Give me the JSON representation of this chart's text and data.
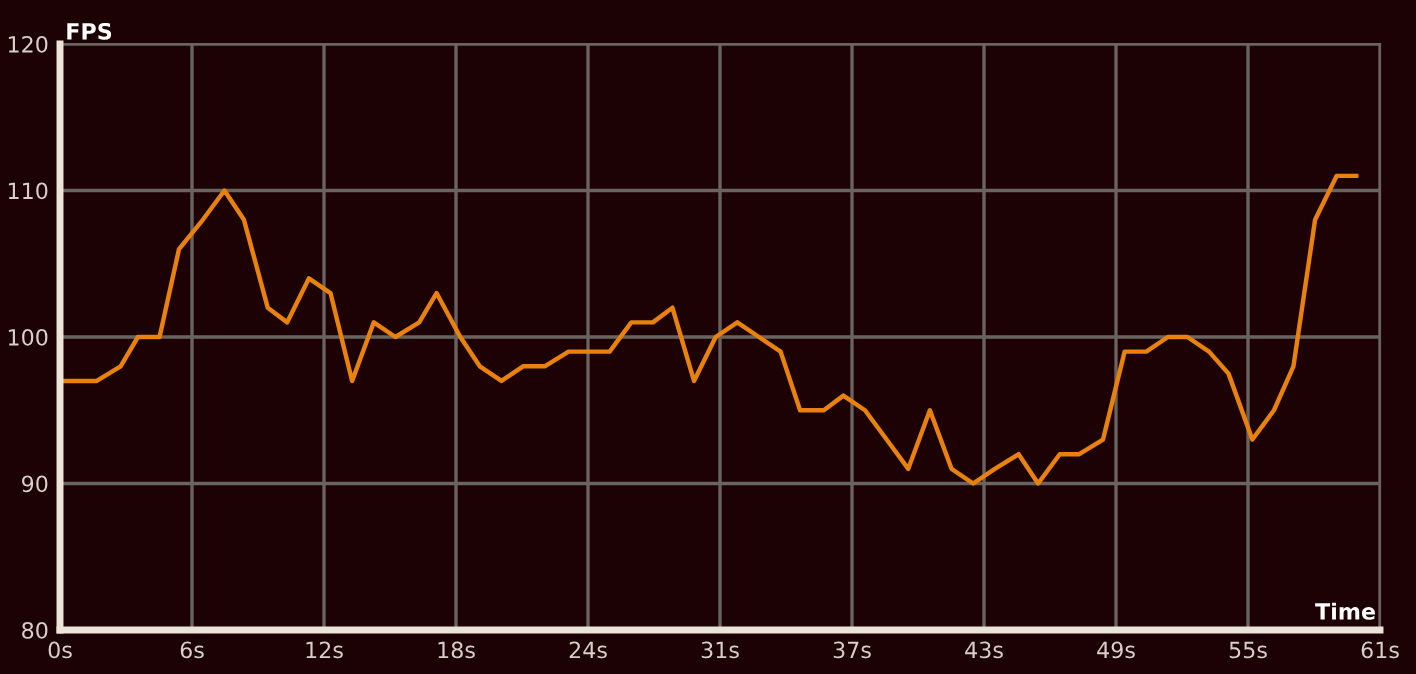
{
  "chart_data": {
    "type": "line",
    "xlabel": "Time",
    "ylabel": "FPS",
    "x": [
      0,
      1.7,
      2.8,
      3.6,
      4.6,
      5.5,
      6.6,
      7.6,
      8.5,
      9.6,
      10.5,
      11.5,
      12.5,
      13.5,
      14.5,
      15.5,
      16.6,
      17.4,
      18.5,
      19.4,
      20.4,
      21.4,
      22.4,
      23.5,
      25.4,
      26.4,
      27.4,
      28.3,
      29.3,
      30.3,
      31.3,
      32.3,
      33.3,
      34.2,
      35.3,
      36.2,
      37.2,
      38.2,
      39.2,
      40.2,
      41.2,
      42.2,
      43.2,
      44.3,
      45.2,
      46.2,
      47.1,
      48.2,
      49.2,
      50.2,
      51.2,
      52.1,
      53.1,
      54,
      55.1,
      56.1,
      57,
      58,
      59,
      59.9
    ],
    "series": [
      {
        "color": "#e8820c",
        "values": [
          97,
          97,
          98,
          100,
          100,
          106,
          108,
          110,
          108,
          102,
          101,
          104,
          103,
          97,
          101,
          100,
          101,
          103,
          100,
          98,
          97,
          98,
          98,
          99,
          99,
          101,
          101,
          102,
          97,
          100,
          101,
          100,
          99,
          95,
          95,
          96,
          95,
          93,
          91,
          95,
          91,
          90,
          91,
          92,
          90,
          92,
          92,
          93,
          99,
          99,
          100,
          100,
          99,
          97.5,
          93,
          95,
          98,
          108,
          111,
          111
        ]
      }
    ],
    "xlim": [
      0,
      61
    ],
    "ylim": [
      80,
      120
    ],
    "xticks": [
      {
        "value": 0,
        "label": "0s"
      },
      {
        "value": 6.1,
        "label": "6s"
      },
      {
        "value": 12.2,
        "label": "12s"
      },
      {
        "value": 18.3,
        "label": "18s"
      },
      {
        "value": 24.4,
        "label": "24s"
      },
      {
        "value": 30.5,
        "label": "31s"
      },
      {
        "value": 36.6,
        "label": "37s"
      },
      {
        "value": 42.7,
        "label": "43s"
      },
      {
        "value": 48.8,
        "label": "49s"
      },
      {
        "value": 54.9,
        "label": "55s"
      },
      {
        "value": 61,
        "label": "61s"
      }
    ],
    "yticks": [
      80,
      90,
      100,
      110,
      120
    ],
    "grid": true,
    "marker": "none",
    "line_style": "solid"
  }
}
